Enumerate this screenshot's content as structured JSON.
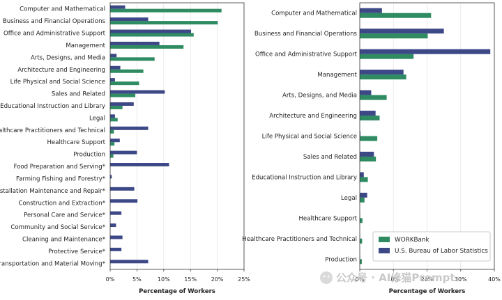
{
  "colors": {
    "workbank": "#2e8b62",
    "bls": "#3d4887",
    "axis": "#333333",
    "grid": "#e6e6e6"
  },
  "watermark": {
    "icon": "wechat-icon",
    "text": "公众号 · AI修猫Prompt"
  },
  "chart_data": [
    {
      "type": "bar",
      "orientation": "horizontal",
      "xlabel": "Percentage of Workers",
      "xlim": [
        0,
        25
      ],
      "xticks": [
        0,
        5,
        10,
        15,
        20,
        25
      ],
      "tick_suffix": "%",
      "grid": true,
      "categories": [
        "Computer and Mathematical",
        "Business and Financial Operations",
        "Office and Administrative Support",
        "Management",
        "Arts, Designs, and Media",
        "Architecture and Engineering",
        "Life Physical and Social Science",
        "Sales and Related",
        "Educational Instruction and Library",
        "Legal",
        "Healthcare Practitioners and Technical",
        "Healthcare Support",
        "Production",
        "Food Preparation and Serving*",
        "Farming Fishing and Forestry*",
        "Installation Maintenance and Repair*",
        "Construction and Extraction*",
        "Personal Care and Service*",
        "Community and Social Service*",
        "Cleaning and Maintenance*",
        "Protective Service*",
        "Transportation and Material Moving*"
      ],
      "series": [
        {
          "key": "workbank",
          "values": [
            20.8,
            20.1,
            15.6,
            13.7,
            8.3,
            6.2,
            5.4,
            4.7,
            2.3,
            1.4,
            0.7,
            0.8,
            0.6,
            0,
            0,
            0,
            0,
            0,
            0,
            0,
            0,
            0
          ]
        },
        {
          "key": "bls",
          "values": [
            2.8,
            7.1,
            15.1,
            9.2,
            1.2,
            1.9,
            0.9,
            10.2,
            4.4,
            0.9,
            7.1,
            1.8,
            5.0,
            11.0,
            0.3,
            4.5,
            5.1,
            2.1,
            1.1,
            2.3,
            2.1,
            7.1
          ]
        }
      ]
    },
    {
      "type": "bar",
      "orientation": "horizontal",
      "xlabel": "Percentage of Workers",
      "xlim": [
        0,
        40
      ],
      "xticks": [
        0,
        10,
        20,
        30,
        40
      ],
      "tick_suffix": "%",
      "grid": true,
      "categories": [
        "Computer and Mathematical",
        "Business and Financial Operations",
        "Office and Administrative Support",
        "Management",
        "Arts, Designs, and Media",
        "Architecture and Engineering",
        "Life Physical and Social Science",
        "Sales and Related",
        "Educational Instruction and Library",
        "Legal",
        "Healthcare Support",
        "Healthcare Practitioners and Technical",
        "Production"
      ],
      "series": [
        {
          "key": "workbank",
          "name": "WORKBank",
          "values": [
            21.2,
            20.2,
            16.0,
            13.8,
            8.0,
            5.9,
            5.2,
            4.8,
            2.4,
            1.4,
            0.8,
            0.7,
            0.6
          ]
        },
        {
          "key": "bls",
          "name": "U.S. Bureau of Labor Statistics",
          "values": [
            6.6,
            25.0,
            38.8,
            13.0,
            3.4,
            4.7,
            0.2,
            4.2,
            1.2,
            2.2,
            0.1,
            0.1,
            0.1
          ]
        }
      ],
      "legend": "bottom-right"
    }
  ]
}
